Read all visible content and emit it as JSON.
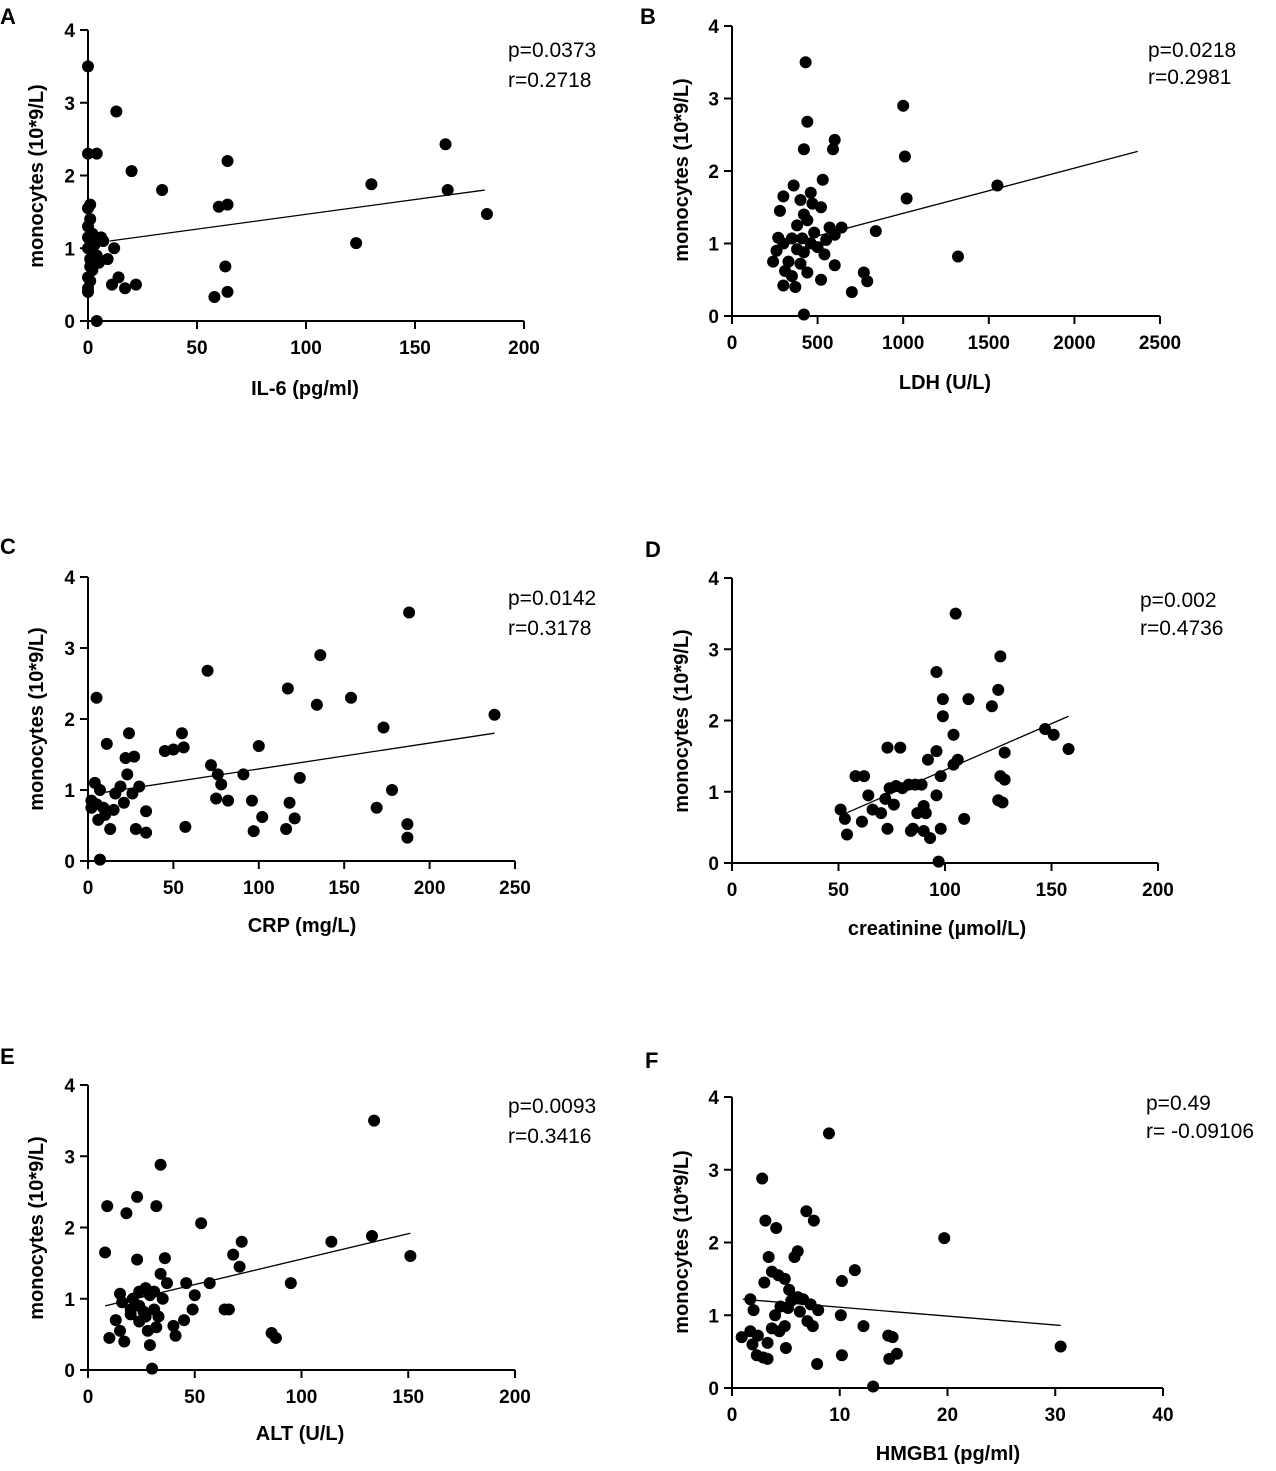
{
  "chart_data": [
    {
      "type": "scatter",
      "panel": "A",
      "xlabel": "IL-6 (pg/ml)",
      "ylabel": "monocytes (10*9/L)",
      "xlim": [
        0,
        200
      ],
      "ylim": [
        0,
        4
      ],
      "xticks": [
        0,
        50,
        100,
        150,
        200
      ],
      "yticks": [
        0,
        1,
        2,
        3,
        4
      ],
      "stats": {
        "p": "p=0.0373",
        "r": "r=0.2718"
      },
      "fit": {
        "x": [
          10,
          182
        ],
        "y": [
          1.1,
          1.8
        ]
      },
      "points": [
        [
          0,
          3.5
        ],
        [
          0,
          2.3
        ],
        [
          4,
          2.3
        ],
        [
          1,
          1.6
        ],
        [
          0,
          1.55
        ],
        [
          1,
          1.4
        ],
        [
          0,
          1.3
        ],
        [
          2,
          1.2
        ],
        [
          0,
          1.15
        ],
        [
          1,
          1.1
        ],
        [
          3,
          1.05
        ],
        [
          0,
          1.0
        ],
        [
          2,
          0.95
        ],
        [
          4,
          0.9
        ],
        [
          1,
          0.85
        ],
        [
          3,
          0.8
        ],
        [
          5,
          0.8
        ],
        [
          1,
          0.75
        ],
        [
          2,
          0.7
        ],
        [
          0,
          0.6
        ],
        [
          1,
          0.55
        ],
        [
          0,
          0.45
        ],
        [
          0,
          0.4
        ],
        [
          4,
          0.0
        ],
        [
          6,
          1.15
        ],
        [
          7,
          1.1
        ],
        [
          9,
          0.85
        ],
        [
          11,
          0.5
        ],
        [
          12,
          1.0
        ],
        [
          13,
          2.88
        ],
        [
          14,
          0.6
        ],
        [
          17,
          0.45
        ],
        [
          20,
          2.06
        ],
        [
          22,
          0.5
        ],
        [
          34,
          1.8
        ],
        [
          58,
          0.33
        ],
        [
          60,
          1.57
        ],
        [
          63,
          0.75
        ],
        [
          64,
          1.6
        ],
        [
          64,
          2.2
        ],
        [
          64,
          0.4
        ],
        [
          123,
          1.07
        ],
        [
          130,
          1.88
        ],
        [
          164,
          2.43
        ],
        [
          165,
          1.8
        ],
        [
          183,
          1.47
        ]
      ]
    },
    {
      "type": "scatter",
      "panel": "B",
      "xlabel": "LDH (U/L)",
      "ylabel": "monocytes (10*9/L)",
      "xlim": [
        0,
        2500
      ],
      "ylim": [
        0,
        4
      ],
      "xticks": [
        0,
        500,
        1000,
        1500,
        2000,
        2500
      ],
      "yticks": [
        0,
        1,
        2,
        3,
        4
      ],
      "stats": {
        "p": "p=0.0218",
        "r": "r=0.2981"
      },
      "fit": {
        "x": [
          300,
          2370
        ],
        "y": [
          0.98,
          2.27
        ]
      },
      "points": [
        [
          430,
          3.5
        ],
        [
          1000,
          2.9
        ],
        [
          440,
          2.68
        ],
        [
          600,
          2.43
        ],
        [
          420,
          2.3
        ],
        [
          590,
          2.3
        ],
        [
          1010,
          2.2
        ],
        [
          530,
          1.88
        ],
        [
          360,
          1.8
        ],
        [
          1550,
          1.8
        ],
        [
          460,
          1.7
        ],
        [
          300,
          1.65
        ],
        [
          1020,
          1.62
        ],
        [
          400,
          1.6
        ],
        [
          470,
          1.55
        ],
        [
          520,
          1.5
        ],
        [
          280,
          1.45
        ],
        [
          420,
          1.4
        ],
        [
          440,
          1.32
        ],
        [
          380,
          1.25
        ],
        [
          570,
          1.22
        ],
        [
          640,
          1.22
        ],
        [
          480,
          1.15
        ],
        [
          840,
          1.17
        ],
        [
          600,
          1.12
        ],
        [
          270,
          1.08
        ],
        [
          350,
          1.07
        ],
        [
          410,
          1.07
        ],
        [
          550,
          1.05
        ],
        [
          300,
          1.0
        ],
        [
          460,
          1.0
        ],
        [
          500,
          0.95
        ],
        [
          380,
          0.92
        ],
        [
          260,
          0.9
        ],
        [
          420,
          0.88
        ],
        [
          540,
          0.85
        ],
        [
          240,
          0.75
        ],
        [
          330,
          0.75
        ],
        [
          400,
          0.72
        ],
        [
          600,
          0.7
        ],
        [
          1320,
          0.82
        ],
        [
          310,
          0.62
        ],
        [
          440,
          0.6
        ],
        [
          770,
          0.6
        ],
        [
          350,
          0.55
        ],
        [
          520,
          0.5
        ],
        [
          790,
          0.48
        ],
        [
          300,
          0.42
        ],
        [
          370,
          0.4
        ],
        [
          700,
          0.33
        ],
        [
          420,
          0.02
        ]
      ]
    },
    {
      "type": "scatter",
      "panel": "C",
      "xlabel": "CRP (mg/L)",
      "ylabel": "monocytes (10*9/L)",
      "xlim": [
        0,
        250
      ],
      "ylim": [
        0,
        4
      ],
      "xticks": [
        0,
        50,
        100,
        150,
        200,
        250
      ],
      "yticks": [
        0,
        1,
        2,
        3,
        4
      ],
      "stats": {
        "p": "p=0.0142",
        "r": "r=0.3178"
      },
      "fit": {
        "x": [
          5,
          238
        ],
        "y": [
          0.95,
          1.8
        ]
      },
      "points": [
        [
          188,
          3.5
        ],
        [
          136,
          2.9
        ],
        [
          70,
          2.68
        ],
        [
          117,
          2.43
        ],
        [
          5,
          2.3
        ],
        [
          154,
          2.3
        ],
        [
          134,
          2.2
        ],
        [
          238,
          2.06
        ],
        [
          173,
          1.88
        ],
        [
          24,
          1.8
        ],
        [
          55,
          1.8
        ],
        [
          11,
          1.65
        ],
        [
          100,
          1.62
        ],
        [
          50,
          1.57
        ],
        [
          45,
          1.55
        ],
        [
          56,
          1.6
        ],
        [
          22,
          1.45
        ],
        [
          27,
          1.47
        ],
        [
          72,
          1.35
        ],
        [
          76,
          1.22
        ],
        [
          23,
          1.22
        ],
        [
          91,
          1.22
        ],
        [
          124,
          1.17
        ],
        [
          78,
          1.08
        ],
        [
          19,
          1.05
        ],
        [
          4,
          1.1
        ],
        [
          7,
          1.0
        ],
        [
          30,
          1.05
        ],
        [
          16,
          0.95
        ],
        [
          26,
          0.95
        ],
        [
          2,
          0.85
        ],
        [
          5,
          0.8
        ],
        [
          21,
          0.82
        ],
        [
          75,
          0.88
        ],
        [
          82,
          0.85
        ],
        [
          96,
          0.85
        ],
        [
          118,
          0.82
        ],
        [
          2,
          0.75
        ],
        [
          9,
          0.75
        ],
        [
          15,
          0.72
        ],
        [
          34,
          0.7
        ],
        [
          178,
          1.0
        ],
        [
          10,
          0.65
        ],
        [
          102,
          0.62
        ],
        [
          121,
          0.6
        ],
        [
          6,
          0.58
        ],
        [
          169,
          0.75
        ],
        [
          187,
          0.52
        ],
        [
          13,
          0.45
        ],
        [
          28,
          0.45
        ],
        [
          57,
          0.48
        ],
        [
          116,
          0.45
        ],
        [
          34,
          0.4
        ],
        [
          97,
          0.42
        ],
        [
          187,
          0.33
        ],
        [
          7,
          0.02
        ]
      ]
    },
    {
      "type": "scatter",
      "panel": "D",
      "xlabel": "creatinine (µmol/L)",
      "ylabel": "monocytes (10*9/L)",
      "xlim": [
        0,
        200
      ],
      "ylim": [
        0,
        4
      ],
      "xticks": [
        0,
        50,
        100,
        150,
        200
      ],
      "yticks": [
        0,
        1,
        2,
        3,
        4
      ],
      "stats": {
        "p": "p=0.002",
        "r": "r=0.4736"
      },
      "fit": {
        "x": [
          52,
          158
        ],
        "y": [
          0.68,
          2.06
        ]
      },
      "points": [
        [
          105,
          3.5
        ],
        [
          126,
          2.9
        ],
        [
          96,
          2.68
        ],
        [
          125,
          2.43
        ],
        [
          99,
          2.3
        ],
        [
          111,
          2.3
        ],
        [
          122,
          2.2
        ],
        [
          99,
          2.06
        ],
        [
          147,
          1.88
        ],
        [
          151,
          1.8
        ],
        [
          104,
          1.8
        ],
        [
          158,
          1.6
        ],
        [
          73,
          1.62
        ],
        [
          79,
          1.62
        ],
        [
          96,
          1.57
        ],
        [
          128,
          1.55
        ],
        [
          92,
          1.45
        ],
        [
          106,
          1.45
        ],
        [
          104,
          1.38
        ],
        [
          98,
          1.22
        ],
        [
          126,
          1.22
        ],
        [
          58,
          1.22
        ],
        [
          62,
          1.22
        ],
        [
          128,
          1.17
        ],
        [
          77,
          1.08
        ],
        [
          86,
          1.1
        ],
        [
          74,
          1.05
        ],
        [
          80,
          1.05
        ],
        [
          83,
          1.1
        ],
        [
          89,
          1.1
        ],
        [
          64,
          0.95
        ],
        [
          96,
          0.95
        ],
        [
          72,
          0.9
        ],
        [
          125,
          0.88
        ],
        [
          127,
          0.85
        ],
        [
          76,
          0.82
        ],
        [
          90,
          0.8
        ],
        [
          51,
          0.75
        ],
        [
          66,
          0.75
        ],
        [
          70,
          0.7
        ],
        [
          87,
          0.7
        ],
        [
          91,
          0.7
        ],
        [
          109,
          0.62
        ],
        [
          53,
          0.62
        ],
        [
          61,
          0.58
        ],
        [
          73,
          0.48
        ],
        [
          85,
          0.48
        ],
        [
          90,
          0.45
        ],
        [
          98,
          0.48
        ],
        [
          54,
          0.4
        ],
        [
          84,
          0.45
        ],
        [
          93,
          0.35
        ],
        [
          97,
          0.02
        ]
      ]
    },
    {
      "type": "scatter",
      "panel": "E",
      "xlabel": "ALT (U/L)",
      "ylabel": "monocytes (10*9/L)",
      "xlim": [
        0,
        200
      ],
      "ylim": [
        0,
        4
      ],
      "xticks": [
        0,
        50,
        100,
        150,
        200
      ],
      "yticks": [
        0,
        1,
        2,
        3,
        4
      ],
      "stats": {
        "p": "p=0.0093",
        "r": "r=0.3416"
      },
      "fit": {
        "x": [
          8,
          151
        ],
        "y": [
          0.9,
          1.92
        ]
      },
      "points": [
        [
          134,
          3.5
        ],
        [
          34,
          2.88
        ],
        [
          23,
          2.43
        ],
        [
          9,
          2.3
        ],
        [
          32,
          2.3
        ],
        [
          18,
          2.2
        ],
        [
          53,
          2.06
        ],
        [
          8,
          1.65
        ],
        [
          133,
          1.88
        ],
        [
          114,
          1.8
        ],
        [
          72,
          1.8
        ],
        [
          68,
          1.62
        ],
        [
          151,
          1.6
        ],
        [
          23,
          1.55
        ],
        [
          36,
          1.57
        ],
        [
          71,
          1.45
        ],
        [
          34,
          1.35
        ],
        [
          46,
          1.22
        ],
        [
          37,
          1.22
        ],
        [
          27,
          1.15
        ],
        [
          24,
          1.1
        ],
        [
          31,
          1.1
        ],
        [
          15,
          1.07
        ],
        [
          57,
          1.22
        ],
        [
          95,
          1.22
        ],
        [
          29,
          1.05
        ],
        [
          21,
          1.0
        ],
        [
          50,
          1.05
        ],
        [
          35,
          1.0
        ],
        [
          16,
          0.95
        ],
        [
          24,
          0.9
        ],
        [
          20,
          0.85
        ],
        [
          26,
          0.82
        ],
        [
          31,
          0.85
        ],
        [
          49,
          0.85
        ],
        [
          64,
          0.85
        ],
        [
          66,
          0.85
        ],
        [
          20,
          0.78
        ],
        [
          27,
          0.75
        ],
        [
          33,
          0.75
        ],
        [
          13,
          0.7
        ],
        [
          24,
          0.68
        ],
        [
          45,
          0.7
        ],
        [
          40,
          0.62
        ],
        [
          32,
          0.6
        ],
        [
          15,
          0.55
        ],
        [
          28,
          0.55
        ],
        [
          86,
          0.52
        ],
        [
          10,
          0.45
        ],
        [
          17,
          0.4
        ],
        [
          41,
          0.48
        ],
        [
          88,
          0.45
        ],
        [
          29,
          0.35
        ],
        [
          30,
          0.02
        ]
      ]
    },
    {
      "type": "scatter",
      "panel": "F",
      "xlabel": "HMGB1 (pg/ml)",
      "ylabel": "monocytes (10*9/L)",
      "xlim": [
        0,
        40
      ],
      "ylim": [
        0,
        4
      ],
      "xticks": [
        0,
        10,
        20,
        30,
        40
      ],
      "yticks": [
        0,
        1,
        2,
        3,
        4
      ],
      "stats": {
        "p": "p=0.49",
        "r": "r= -0.09106"
      },
      "fit": {
        "x": [
          1,
          30.5
        ],
        "y": [
          1.22,
          0.86
        ]
      },
      "points": [
        [
          9,
          3.5
        ],
        [
          2.8,
          2.88
        ],
        [
          6.9,
          2.43
        ],
        [
          3.1,
          2.3
        ],
        [
          7.6,
          2.3
        ],
        [
          4.1,
          2.2
        ],
        [
          19.7,
          2.06
        ],
        [
          6.1,
          1.88
        ],
        [
          3.4,
          1.8
        ],
        [
          5.8,
          1.8
        ],
        [
          11.4,
          1.62
        ],
        [
          3.7,
          1.6
        ],
        [
          4.3,
          1.55
        ],
        [
          4.9,
          1.5
        ],
        [
          10.2,
          1.47
        ],
        [
          3.0,
          1.45
        ],
        [
          5.3,
          1.35
        ],
        [
          1.7,
          1.22
        ],
        [
          6.1,
          1.25
        ],
        [
          5.5,
          1.2
        ],
        [
          6.6,
          1.22
        ],
        [
          4.5,
          1.12
        ],
        [
          7.3,
          1.15
        ],
        [
          2.0,
          1.07
        ],
        [
          5.2,
          1.1
        ],
        [
          6.3,
          1.05
        ],
        [
          8.0,
          1.07
        ],
        [
          10.1,
          1.0
        ],
        [
          4.0,
          1.0
        ],
        [
          7.0,
          0.92
        ],
        [
          4.9,
          0.85
        ],
        [
          3.7,
          0.82
        ],
        [
          12.2,
          0.85
        ],
        [
          7.5,
          0.85
        ],
        [
          4.4,
          0.78
        ],
        [
          1.7,
          0.78
        ],
        [
          2.4,
          0.72
        ],
        [
          0.9,
          0.7
        ],
        [
          14.5,
          0.72
        ],
        [
          14.9,
          0.7
        ],
        [
          3.3,
          0.62
        ],
        [
          1.9,
          0.6
        ],
        [
          30.5,
          0.57
        ],
        [
          5.0,
          0.55
        ],
        [
          10.2,
          0.45
        ],
        [
          15.3,
          0.47
        ],
        [
          2.3,
          0.45
        ],
        [
          2.9,
          0.42
        ],
        [
          3.3,
          0.4
        ],
        [
          14.6,
          0.4
        ],
        [
          7.9,
          0.33
        ],
        [
          13.1,
          0.02
        ]
      ]
    }
  ]
}
